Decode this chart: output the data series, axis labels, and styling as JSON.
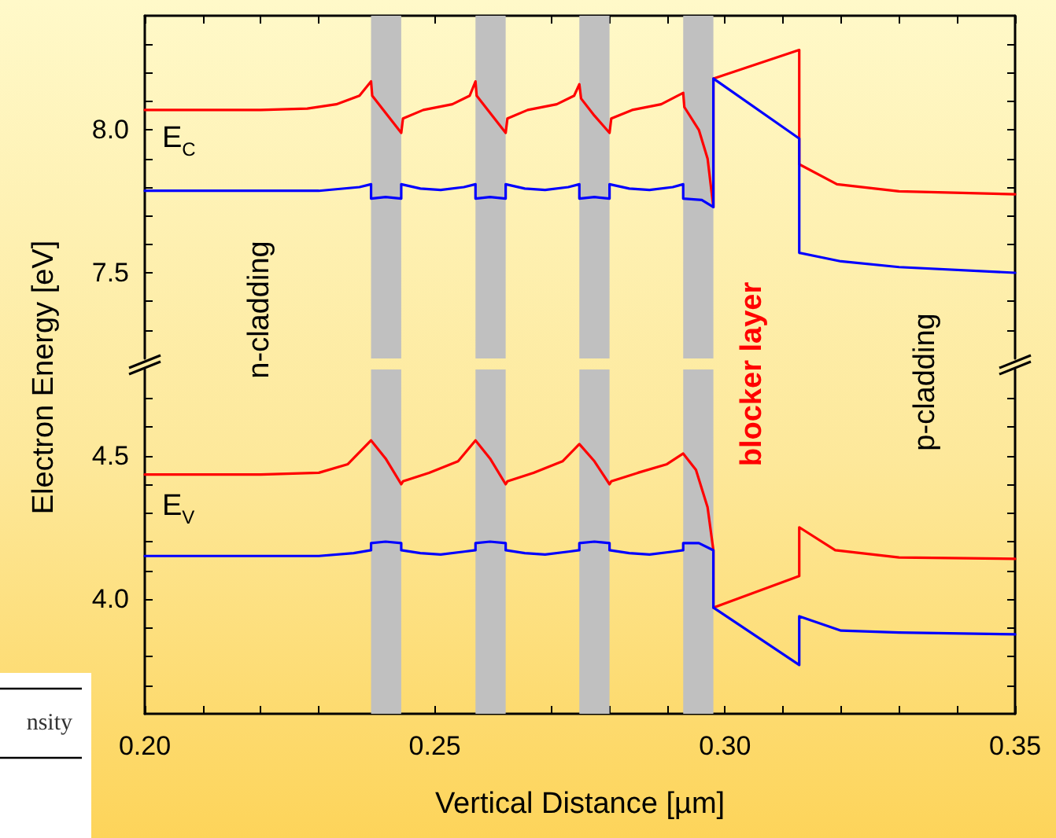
{
  "chart_data": [
    {
      "type": "line",
      "ylabel": "Electron Energy [eV]",
      "tick_labels": "y",
      "xlim": [
        0.2,
        0.35
      ],
      "xticks": [
        {
          "value": 0.2,
          "label": null
        },
        {
          "value": 0.21,
          "label": null
        },
        {
          "value": 0.22,
          "label": null
        },
        {
          "value": 0.23,
          "label": null
        },
        {
          "value": 0.24,
          "label": null
        },
        {
          "value": 0.25,
          "label": null
        },
        {
          "value": 0.26,
          "label": null
        },
        {
          "value": 0.27,
          "label": null
        },
        {
          "value": 0.28,
          "label": null
        },
        {
          "value": 0.29,
          "label": null
        },
        {
          "value": 0.3,
          "label": null
        },
        {
          "value": 0.31,
          "label": null
        },
        {
          "value": 0.32,
          "label": null
        },
        {
          "value": 0.33,
          "label": null
        },
        {
          "value": 0.34,
          "label": null
        },
        {
          "value": 0.35,
          "label": null
        }
      ],
      "ylim": [
        7.2,
        8.4
      ],
      "yticks": [
        {
          "value": 7.3,
          "label": null
        },
        {
          "value": 7.4,
          "label": null
        },
        {
          "value": 7.5,
          "label": "7.5"
        },
        {
          "value": 7.6,
          "label": null
        },
        {
          "value": 7.7,
          "label": null
        },
        {
          "value": 7.8,
          "label": null
        },
        {
          "value": 7.9,
          "label": null
        },
        {
          "value": 8,
          "label": "8.0"
        },
        {
          "value": 8.1,
          "label": null
        },
        {
          "value": 8.2,
          "label": null
        },
        {
          "value": 8.3,
          "label": null
        }
      ],
      "bands": [
        {
          "axis": "x",
          "from": 0.239,
          "to": 0.2442,
          "color": "#c0c0c0"
        },
        {
          "axis": "x",
          "from": 0.257,
          "to": 0.2622,
          "color": "#c0c0c0"
        },
        {
          "axis": "x",
          "from": 0.2749,
          "to": 0.2801,
          "color": "#c0c0c0"
        },
        {
          "axis": "x",
          "from": 0.2928,
          "to": 0.298,
          "color": "#c0c0c0"
        }
      ],
      "annotations": [
        "E$_{C}$",
        "n-cladding"
      ],
      "series": [
        {
          "color": "#ff0000",
          "x": [
            0.2,
            0.22,
            0.228,
            0.233,
            0.237,
            0.239,
            0.2392,
            0.2415,
            0.2442,
            0.2445,
            0.248,
            0.253,
            0.256,
            0.257,
            0.2572,
            0.2595,
            0.2622,
            0.2625,
            0.266,
            0.271,
            0.274,
            0.2749,
            0.2752,
            0.2775,
            0.2801,
            0.2804,
            0.284,
            0.289,
            0.2928,
            0.293,
            0.2955,
            0.297,
            0.298,
            0.298,
            0.3128,
            0.3128,
            0.3193,
            0.33,
            0.35
          ],
          "values": [
            8.07,
            8.07,
            8.075,
            8.09,
            8.12,
            8.17,
            8.12,
            8.06,
            7.99,
            8.04,
            8.07,
            8.09,
            8.12,
            8.17,
            8.12,
            8.06,
            7.99,
            8.04,
            8.07,
            8.09,
            8.12,
            8.16,
            8.11,
            8.05,
            7.99,
            8.04,
            8.07,
            8.09,
            8.13,
            8.08,
            8.0,
            7.9,
            7.73,
            8.18,
            8.28,
            7.88,
            7.81,
            7.785,
            7.775
          ]
        },
        {
          "color": "#0000ff",
          "x": [
            0.2,
            0.23,
            0.237,
            0.239,
            0.239,
            0.2415,
            0.2442,
            0.2442,
            0.2475,
            0.251,
            0.255,
            0.257,
            0.257,
            0.2595,
            0.2622,
            0.2622,
            0.2655,
            0.269,
            0.273,
            0.2749,
            0.2749,
            0.2775,
            0.2801,
            0.2801,
            0.2835,
            0.287,
            0.291,
            0.2928,
            0.2928,
            0.296,
            0.298,
            0.298,
            0.3128,
            0.3128,
            0.32,
            0.33,
            0.35
          ],
          "values": [
            7.787,
            7.787,
            7.8,
            7.81,
            7.76,
            7.765,
            7.76,
            7.81,
            7.795,
            7.79,
            7.8,
            7.81,
            7.76,
            7.765,
            7.76,
            7.81,
            7.795,
            7.79,
            7.8,
            7.81,
            7.76,
            7.765,
            7.76,
            7.81,
            7.795,
            7.79,
            7.8,
            7.81,
            7.76,
            7.755,
            7.73,
            8.18,
            7.97,
            7.57,
            7.54,
            7.52,
            7.5
          ]
        }
      ]
    },
    {
      "type": "line",
      "xlabel": "Vertical Distance [µm]",
      "xlim": [
        0.2,
        0.35
      ],
      "xticks": [
        {
          "value": 0.2,
          "label": "0.20"
        },
        {
          "value": 0.21,
          "label": null
        },
        {
          "value": 0.22,
          "label": null
        },
        {
          "value": 0.23,
          "label": null
        },
        {
          "value": 0.24,
          "label": null
        },
        {
          "value": 0.25,
          "label": "0.25"
        },
        {
          "value": 0.26,
          "label": null
        },
        {
          "value": 0.27,
          "label": null
        },
        {
          "value": 0.28,
          "label": null
        },
        {
          "value": 0.29,
          "label": null
        },
        {
          "value": 0.3,
          "label": "0.30"
        },
        {
          "value": 0.31,
          "label": null
        },
        {
          "value": 0.32,
          "label": null
        },
        {
          "value": 0.33,
          "label": null
        },
        {
          "value": 0.34,
          "label": null
        },
        {
          "value": 0.35,
          "label": "0.35"
        }
      ],
      "ylim": [
        3.6,
        4.8
      ],
      "yticks": [
        {
          "value": 3.7,
          "label": null
        },
        {
          "value": 3.8,
          "label": null
        },
        {
          "value": 3.9,
          "label": null
        },
        {
          "value": 4,
          "label": "4.0"
        },
        {
          "value": 4.1,
          "label": null
        },
        {
          "value": 4.2,
          "label": null
        },
        {
          "value": 4.3,
          "label": null
        },
        {
          "value": 4.4,
          "label": null
        },
        {
          "value": 4.5,
          "label": "4.5"
        },
        {
          "value": 4.6,
          "label": null
        },
        {
          "value": 4.7,
          "label": null
        }
      ],
      "bands": [
        {
          "axis": "x",
          "from": 0.239,
          "to": 0.2442,
          "color": "#c0c0c0"
        },
        {
          "axis": "x",
          "from": 0.257,
          "to": 0.2622,
          "color": "#c0c0c0"
        },
        {
          "axis": "x",
          "from": 0.2749,
          "to": 0.2801,
          "color": "#c0c0c0"
        },
        {
          "axis": "x",
          "from": 0.2928,
          "to": 0.298,
          "color": "#c0c0c0"
        }
      ],
      "annotations": [
        "E$_{V}$",
        "blocker layer",
        "p-cladding",
        "nsity"
      ],
      "series": [
        {
          "color": "#ff0000",
          "x": [
            0.2,
            0.22,
            0.23,
            0.235,
            0.239,
            0.2415,
            0.2442,
            0.2445,
            0.249,
            0.254,
            0.257,
            0.2595,
            0.2622,
            0.2625,
            0.267,
            0.272,
            0.2749,
            0.2775,
            0.2801,
            0.2804,
            0.285,
            0.29,
            0.2928,
            0.295,
            0.297,
            0.298,
            0.298,
            0.3128,
            0.3128,
            0.319,
            0.33,
            0.35
          ],
          "values": [
            4.434,
            4.434,
            4.44,
            4.47,
            4.553,
            4.49,
            4.4,
            4.41,
            4.44,
            4.48,
            4.553,
            4.49,
            4.4,
            4.41,
            4.44,
            4.48,
            4.54,
            4.48,
            4.4,
            4.41,
            4.44,
            4.47,
            4.507,
            4.45,
            4.32,
            4.17,
            3.97,
            4.08,
            4.25,
            4.17,
            4.145,
            4.14
          ]
        },
        {
          "color": "#0000ff",
          "x": [
            0.2,
            0.23,
            0.236,
            0.239,
            0.239,
            0.2415,
            0.2442,
            0.2442,
            0.2475,
            0.251,
            0.255,
            0.257,
            0.257,
            0.2595,
            0.2622,
            0.2622,
            0.2655,
            0.269,
            0.273,
            0.2749,
            0.2749,
            0.2775,
            0.2801,
            0.2801,
            0.2835,
            0.287,
            0.291,
            0.2928,
            0.2928,
            0.2955,
            0.298,
            0.298,
            0.3128,
            0.3128,
            0.32,
            0.33,
            0.35
          ],
          "values": [
            4.15,
            4.15,
            4.16,
            4.17,
            4.195,
            4.2,
            4.195,
            4.17,
            4.16,
            4.155,
            4.165,
            4.17,
            4.195,
            4.2,
            4.195,
            4.17,
            4.16,
            4.155,
            4.165,
            4.17,
            4.195,
            4.2,
            4.195,
            4.17,
            4.16,
            4.155,
            4.165,
            4.17,
            4.195,
            4.195,
            4.17,
            3.97,
            3.77,
            3.94,
            3.89,
            3.883,
            3.877
          ]
        }
      ]
    }
  ]
}
